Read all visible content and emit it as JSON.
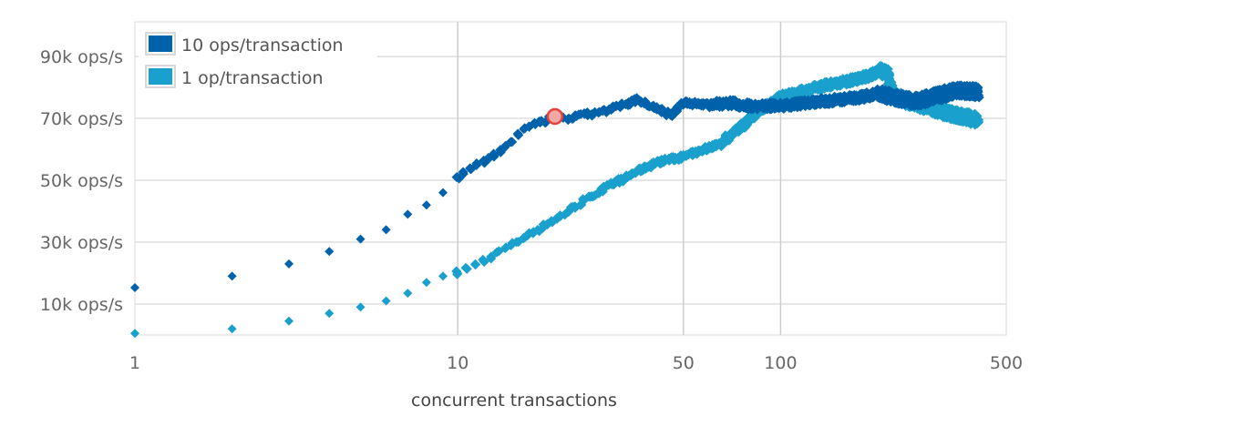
{
  "chart_data": {
    "type": "scatter",
    "title": "",
    "xlabel": "concurrent transactions",
    "ylabel": "",
    "xscale": "log",
    "xlim": [
      1,
      500
    ],
    "ylim": [
      0,
      100000
    ],
    "x_ticks": [
      1,
      10,
      50,
      100,
      500
    ],
    "x_tick_labels": [
      "1",
      "10",
      "50",
      "100",
      "500"
    ],
    "y_ticks": [
      10000,
      30000,
      50000,
      70000,
      90000
    ],
    "y_tick_labels": [
      "10k ops/s",
      "30k ops/s",
      "50k ops/s",
      "70k ops/s",
      "90k ops/s"
    ],
    "grid": true,
    "legend_position": "top-left",
    "series": [
      {
        "name": "10 ops/transaction",
        "color": "#0062AA",
        "x": [
          1,
          2,
          3,
          4,
          5,
          6,
          7,
          8,
          9,
          10,
          11,
          12,
          13,
          14,
          16,
          18,
          20,
          22,
          26,
          30,
          36,
          40,
          46,
          50,
          60,
          70,
          80,
          100,
          120,
          150,
          180,
          200,
          230,
          260,
          300,
          350,
          410
        ],
        "values": [
          15300,
          19000,
          23000,
          27000,
          31000,
          34000,
          39000,
          42000,
          46000,
          51000,
          53500,
          56000,
          58000,
          61000,
          66500,
          68500,
          70600,
          70000,
          71500,
          73000,
          76000,
          74000,
          71000,
          75000,
          74500,
          75000,
          74000,
          74000,
          75000,
          76000,
          77000,
          78000,
          76500,
          75500,
          77000,
          79000,
          78500
        ]
      },
      {
        "name": "1 op/transaction",
        "color": "#1AA0CC",
        "x": [
          1,
          2,
          3,
          4,
          5,
          6,
          7,
          8,
          9,
          10,
          12,
          14,
          16,
          19,
          22,
          26,
          30,
          36,
          42,
          50,
          58,
          65,
          75,
          85,
          100,
          120,
          135,
          160,
          185,
          205,
          215,
          225,
          260,
          300,
          350,
          410
        ],
        "values": [
          500,
          2000,
          4500,
          7000,
          9000,
          11000,
          13500,
          17000,
          19000,
          20000,
          24000,
          28000,
          31500,
          36000,
          40000,
          45000,
          48500,
          53000,
          56000,
          57600,
          60000,
          62000,
          67000,
          72000,
          77000,
          79000,
          80500,
          82000,
          83500,
          85500,
          84000,
          77000,
          75000,
          73000,
          71000,
          69500
        ]
      }
    ],
    "highlight_point": {
      "series": "10 ops/transaction",
      "x": 20,
      "y": 70600,
      "color": "#E8403C"
    }
  },
  "legend": {
    "items": [
      {
        "label": "10 ops/transaction",
        "color": "#0062AA"
      },
      {
        "label": "1 op/transaction",
        "color": "#1AA0CC"
      }
    ]
  }
}
